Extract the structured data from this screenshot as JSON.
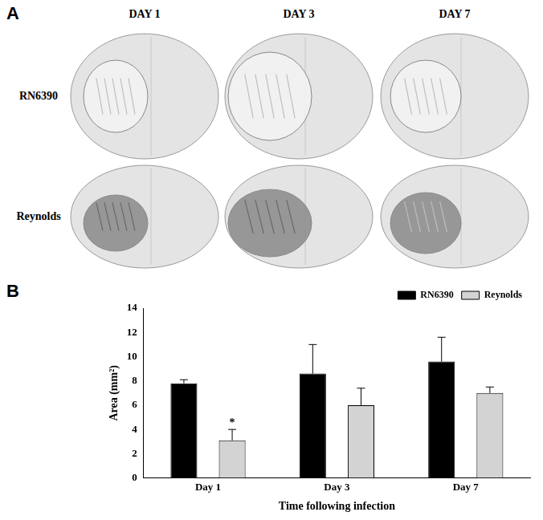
{
  "panel_a": {
    "label": "A",
    "columns": [
      "DAY 1",
      "DAY 3",
      "DAY 7"
    ],
    "rows": [
      "RN6390",
      "Reynolds"
    ]
  },
  "panel_b": {
    "label": "B"
  },
  "chart_data": {
    "type": "bar",
    "x_label": "Time following infection",
    "y_label": "Area (mm²)",
    "categories": [
      "Day 1",
      "Day 3",
      "Day 7"
    ],
    "series": [
      {
        "name": "RN6390",
        "color": "#000000",
        "values": [
          7.8,
          8.6,
          9.6
        ],
        "errors": [
          0.3,
          2.4,
          2.0
        ]
      },
      {
        "name": "Reynolds",
        "color": "#d3d3d3",
        "values": [
          3.1,
          6.0,
          7.0
        ],
        "errors": [
          0.9,
          1.4,
          0.5
        ]
      }
    ],
    "annotations": [
      {
        "text": "*",
        "category": "Day 1",
        "series": "Reynolds"
      }
    ],
    "ylim": [
      0,
      14
    ],
    "yticks": [
      0,
      2,
      4,
      6,
      8,
      10,
      12,
      14
    ],
    "grid": false,
    "legend": "top-right"
  }
}
